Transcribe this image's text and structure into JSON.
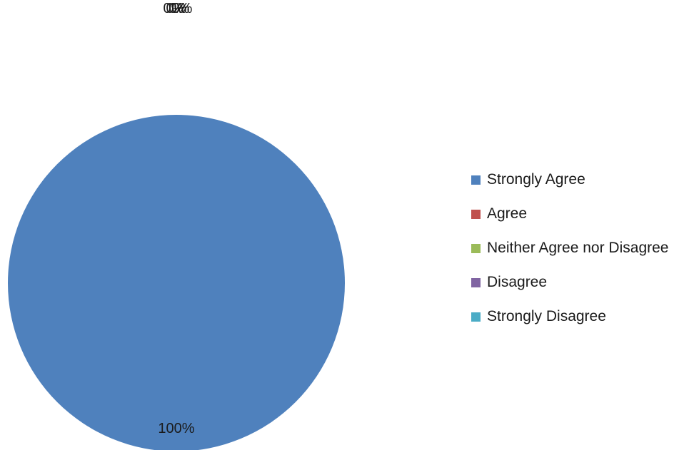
{
  "chart_data": {
    "type": "pie",
    "categories": [
      "Strongly Agree",
      "Agree",
      "Neither Agree nor Disagree",
      "Disagree",
      "Strongly Disagree"
    ],
    "values": [
      100,
      0,
      0,
      0,
      0
    ],
    "data_labels": [
      "100%",
      "0%",
      "0%",
      "0%",
      "0%"
    ],
    "colors": [
      "#4F81BD",
      "#C0504D",
      "#9BBB59",
      "#8064A2",
      "#4BACC6"
    ],
    "legend_position": "right"
  }
}
